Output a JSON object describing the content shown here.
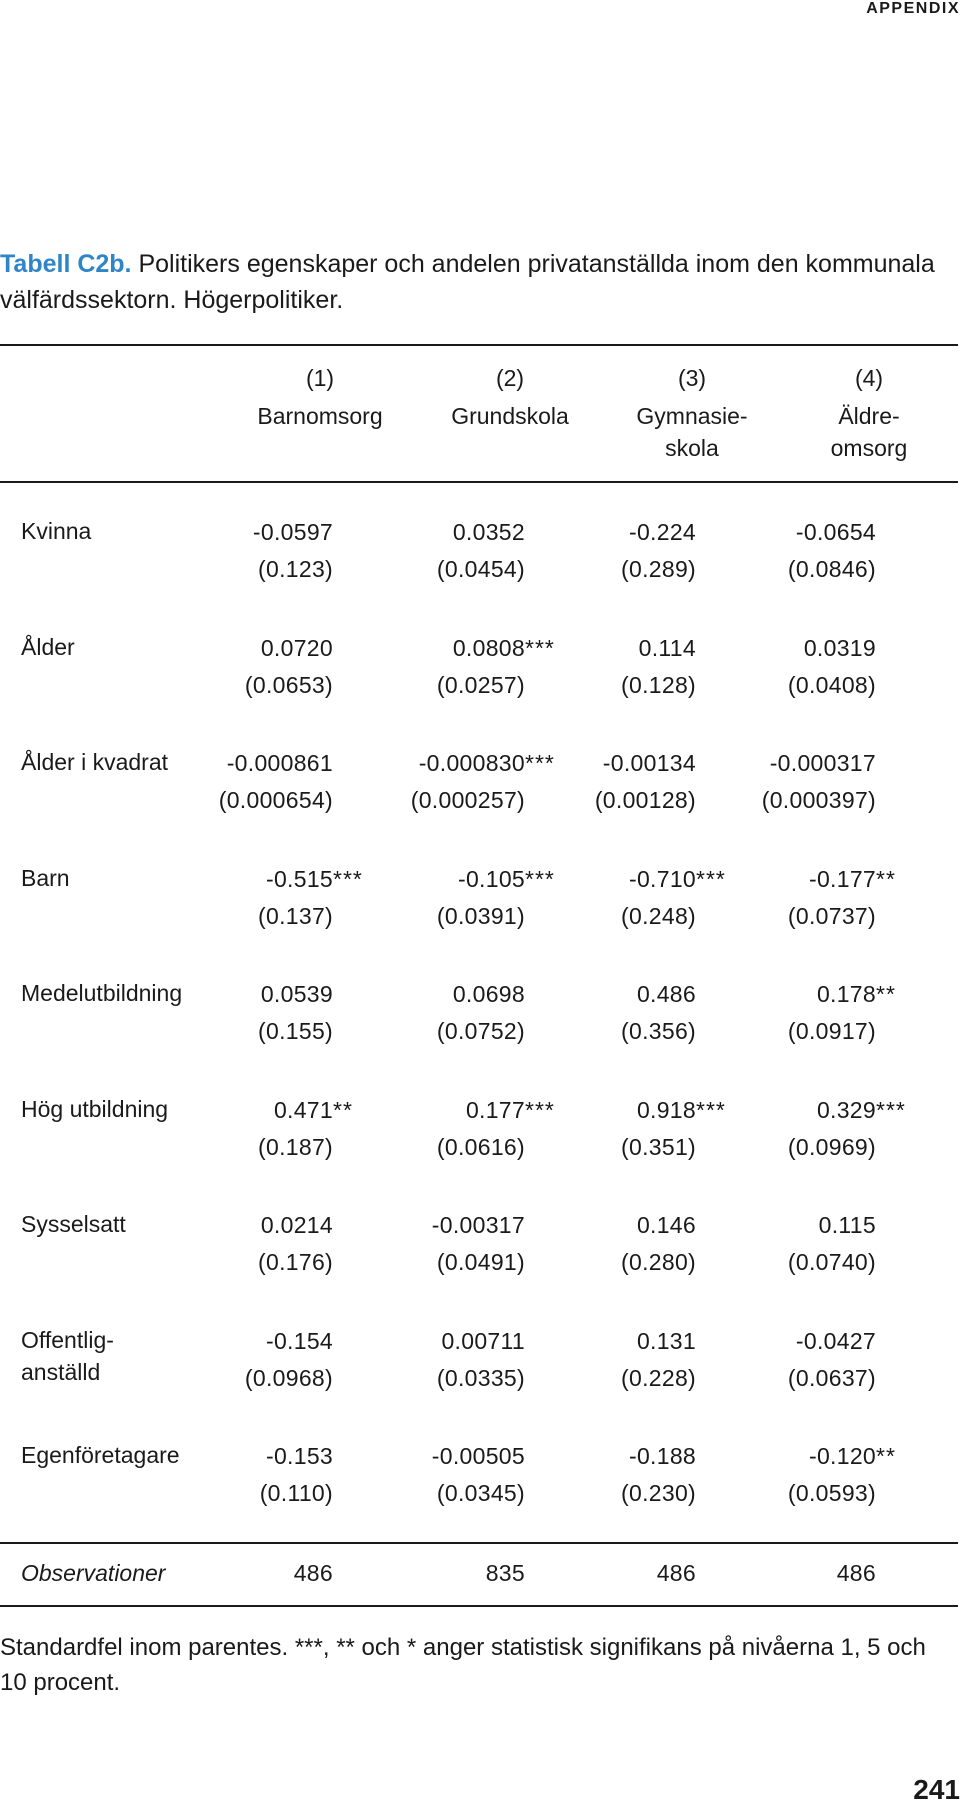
{
  "running_head": "APPENDIX",
  "caption": {
    "label": "Tabell C2b.",
    "text": " Politikers egenskaper och andelen privatanställda inom den kom­munala välfärdssektorn. Högerpolitiker."
  },
  "table": {
    "columns": [
      {
        "number": "(1)",
        "name": "Barnomsorg"
      },
      {
        "number": "(2)",
        "name": "Grundskola"
      },
      {
        "number": "(3)",
        "name": "Gymnasie-\nskola"
      },
      {
        "number": "(4)",
        "name": "Äldre-\nomsorg"
      }
    ],
    "rows": [
      {
        "label": "Kvinna",
        "coefs": [
          {
            "v": "-0.0597",
            "s": ""
          },
          {
            "v": "0.0352",
            "s": ""
          },
          {
            "v": "-0.224",
            "s": ""
          },
          {
            "v": "-0.0654",
            "s": ""
          }
        ],
        "ses": [
          "(0.123)",
          "(0.0454)",
          "(0.289)",
          "(0.0846)"
        ]
      },
      {
        "label": "Ålder",
        "coefs": [
          {
            "v": "0.0720",
            "s": ""
          },
          {
            "v": "0.0808",
            "s": "***"
          },
          {
            "v": "0.114",
            "s": ""
          },
          {
            "v": "0.0319",
            "s": ""
          }
        ],
        "ses": [
          "(0.0653)",
          "(0.0257)",
          "(0.128)",
          "(0.0408)"
        ]
      },
      {
        "label": "Ålder i kvadrat",
        "coefs": [
          {
            "v": "-0.000861",
            "s": ""
          },
          {
            "v": "-0.000830",
            "s": "***"
          },
          {
            "v": "-0.00134",
            "s": ""
          },
          {
            "v": "-0.000317",
            "s": ""
          }
        ],
        "ses": [
          "(0.000654)",
          "(0.000257)",
          "(0.00128)",
          "(0.000397)"
        ]
      },
      {
        "label": "Barn",
        "coefs": [
          {
            "v": "-0.515",
            "s": "***"
          },
          {
            "v": "-0.105",
            "s": "***"
          },
          {
            "v": "-0.710",
            "s": "***"
          },
          {
            "v": "-0.177",
            "s": "**"
          }
        ],
        "ses": [
          "(0.137)",
          "(0.0391)",
          "(0.248)",
          "(0.0737)"
        ]
      },
      {
        "label": "Medelutbildning",
        "coefs": [
          {
            "v": "0.0539",
            "s": ""
          },
          {
            "v": "0.0698",
            "s": ""
          },
          {
            "v": "0.486",
            "s": ""
          },
          {
            "v": "0.178",
            "s": "**"
          }
        ],
        "ses": [
          "(0.155)",
          "(0.0752)",
          "(0.356)",
          "(0.0917)"
        ]
      },
      {
        "label": "Hög utbildning",
        "coefs": [
          {
            "v": "0.471",
            "s": "**"
          },
          {
            "v": "0.177",
            "s": "***"
          },
          {
            "v": "0.918",
            "s": "***"
          },
          {
            "v": "0.329",
            "s": "***"
          }
        ],
        "ses": [
          "(0.187)",
          "(0.0616)",
          "(0.351)",
          "(0.0969)"
        ]
      },
      {
        "label": "Sysselsatt",
        "coefs": [
          {
            "v": "0.0214",
            "s": ""
          },
          {
            "v": "-0.00317",
            "s": ""
          },
          {
            "v": "0.146",
            "s": ""
          },
          {
            "v": "0.115",
            "s": ""
          }
        ],
        "ses": [
          "(0.176)",
          "(0.0491)",
          "(0.280)",
          "(0.0740)"
        ]
      },
      {
        "label": "Offentlig-\nanställd",
        "coefs": [
          {
            "v": "-0.154",
            "s": ""
          },
          {
            "v": "0.00711",
            "s": ""
          },
          {
            "v": "0.131",
            "s": ""
          },
          {
            "v": "-0.0427",
            "s": ""
          }
        ],
        "ses": [
          "(0.0968)",
          "(0.0335)",
          "(0.228)",
          "(0.0637)"
        ]
      },
      {
        "label": "Egenföretagare",
        "coefs": [
          {
            "v": "-0.153",
            "s": ""
          },
          {
            "v": "-0.00505",
            "s": ""
          },
          {
            "v": "-0.188",
            "s": ""
          },
          {
            "v": "-0.120",
            "s": "**"
          }
        ],
        "ses": [
          "(0.110)",
          "(0.0345)",
          "(0.230)",
          "(0.0593)"
        ]
      }
    ],
    "observations": {
      "label": "Observationer",
      "values": [
        "486",
        "835",
        "486",
        "486"
      ]
    }
  },
  "footnote": "Standardfel inom parentes. ***, ** och * anger statistisk signifikans på nivå­erna 1, 5 och 10 procent.",
  "page_number": "241"
}
